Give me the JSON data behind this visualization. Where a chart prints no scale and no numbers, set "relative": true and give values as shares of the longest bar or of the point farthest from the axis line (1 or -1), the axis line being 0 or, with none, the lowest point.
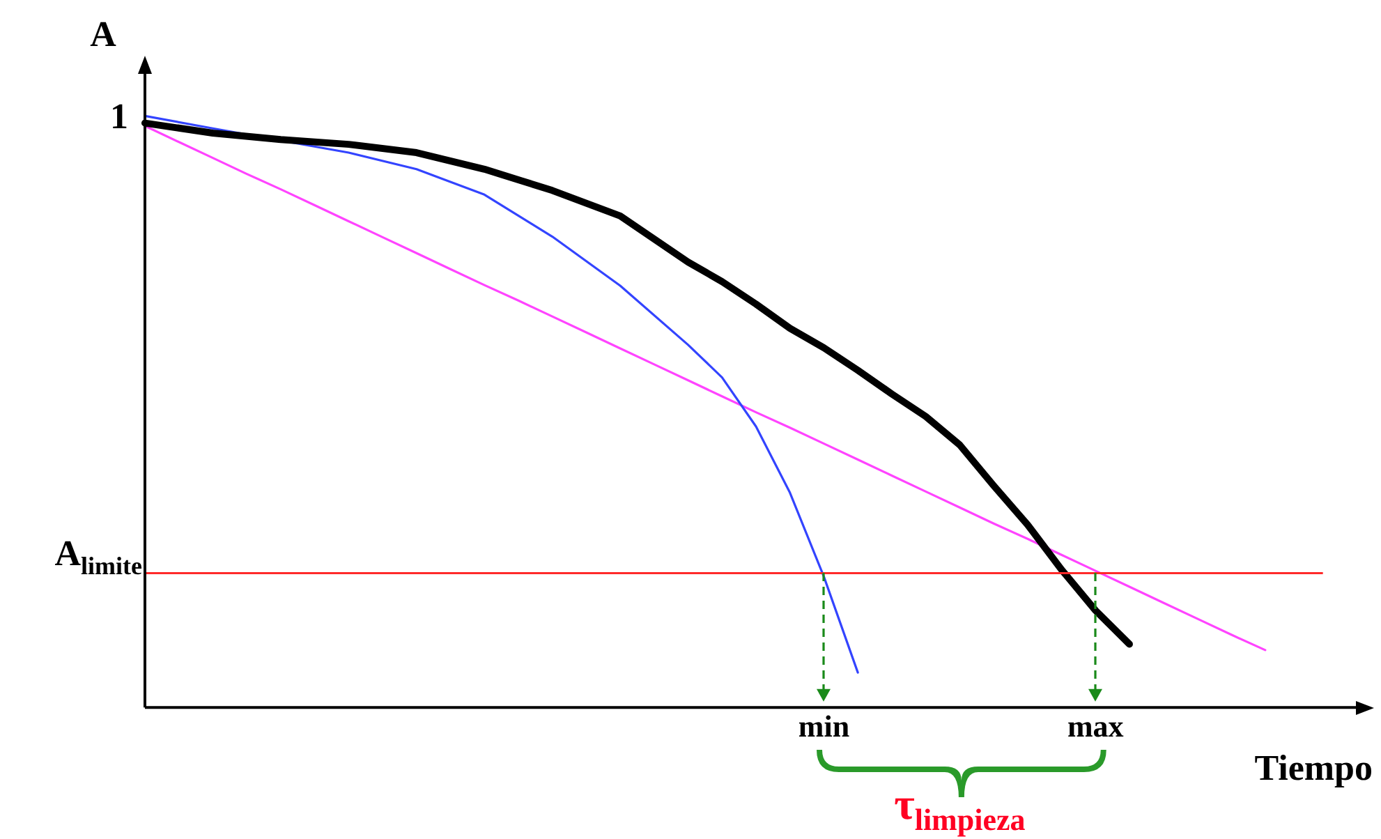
{
  "chart_data": {
    "type": "line",
    "relative": true,
    "xlabel": "Tiempo",
    "ylabel": "A",
    "categories": [
      null,
      null,
      null,
      null,
      null,
      null,
      null,
      null,
      null,
      null,
      null,
      null,
      null,
      null,
      null,
      null,
      null,
      null,
      null,
      null,
      "min",
      null,
      null,
      null,
      null,
      null,
      null,
      null,
      "max",
      null,
      null,
      null,
      null,
      null,
      null,
      null,
      null
    ],
    "series": [
      {
        "color": "#000000",
        "values": [
          0.988,
          null,
          0.971,
          null,
          0.96,
          null,
          0.952,
          null,
          0.938,
          null,
          0.91,
          null,
          0.874,
          null,
          0.831,
          null,
          0.753,
          0.72,
          0.682,
          0.641,
          0.608,
          0.57,
          0.53,
          0.492,
          0.444,
          0.375,
          0.309,
          0.233,
          0.164,
          0.107,
          null,
          null,
          null,
          null,
          null,
          null,
          null
        ]
      },
      {
        "color": "#3344ff",
        "values": [
          1,
          null,
          0.979,
          null,
          null,
          null,
          0.938,
          null,
          0.91,
          null,
          0.867,
          null,
          0.796,
          null,
          0.713,
          null,
          0.613,
          0.558,
          0.475,
          0.363,
          0.221,
          0.059,
          null,
          null,
          null,
          null,
          null,
          null,
          null,
          null,
          null,
          null,
          null,
          null,
          null,
          null,
          null
        ]
      },
      {
        "color": "#ff44ff",
        "values": [
          0.983,
          0.956,
          0.929,
          0.902,
          0.876,
          0.849,
          0.822,
          0.795,
          0.768,
          0.741,
          0.714,
          0.688,
          0.661,
          0.634,
          0.607,
          0.58,
          0.553,
          0.526,
          0.499,
          0.473,
          0.446,
          0.419,
          0.392,
          0.365,
          0.338,
          0.311,
          0.285,
          0.258,
          0.231,
          0.204,
          0.177,
          0.15,
          0.123,
          0.097,
          null,
          null,
          null
        ]
      }
    ],
    "ref_lines": [
      {
        "axis": "y",
        "value": 0.227,
        "label": "A$_{limite}$",
        "color": "#ff2a2a"
      }
    ],
    "annotations": [
      "1",
      "τ$_{limpieza}$"
    ],
    "grid": false,
    "legend": false,
    "marker": "none"
  }
}
